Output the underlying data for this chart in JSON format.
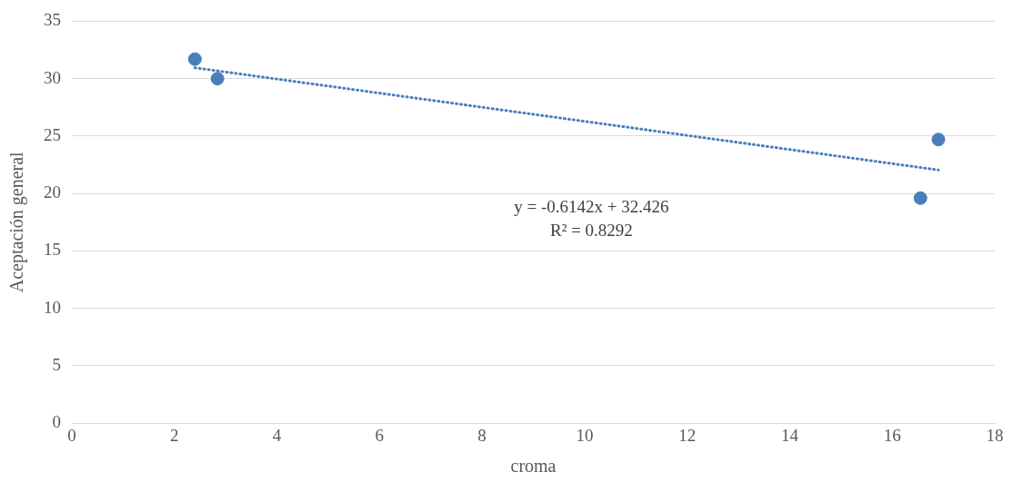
{
  "chart_data": {
    "type": "scatter",
    "xlabel": "croma",
    "ylabel": "Aceptación general",
    "xlim": [
      0,
      18
    ],
    "xticks": [
      0,
      2,
      4,
      6,
      8,
      10,
      12,
      14,
      16,
      18
    ],
    "ylim": [
      0,
      35
    ],
    "yticks": [
      0,
      5,
      10,
      15,
      20,
      25,
      30,
      35
    ],
    "grid": "y",
    "legend": false,
    "marker": "circle",
    "series": [
      {
        "type": "scatter",
        "color": "#4a7ebb",
        "x": [
          2.4,
          2.84,
          16.55,
          16.9
        ],
        "values": [
          31.7,
          30.0,
          19.6,
          24.7
        ]
      },
      {
        "type": "line",
        "color": "#4a7ebb",
        "line_style": "dotted",
        "marker": "none",
        "x": [
          2.4,
          16.9
        ],
        "values": [
          30.95,
          22.05
        ]
      }
    ],
    "annotations": [
      "y = -0.6142x + 32.426",
      "R² = 0.8292"
    ]
  }
}
